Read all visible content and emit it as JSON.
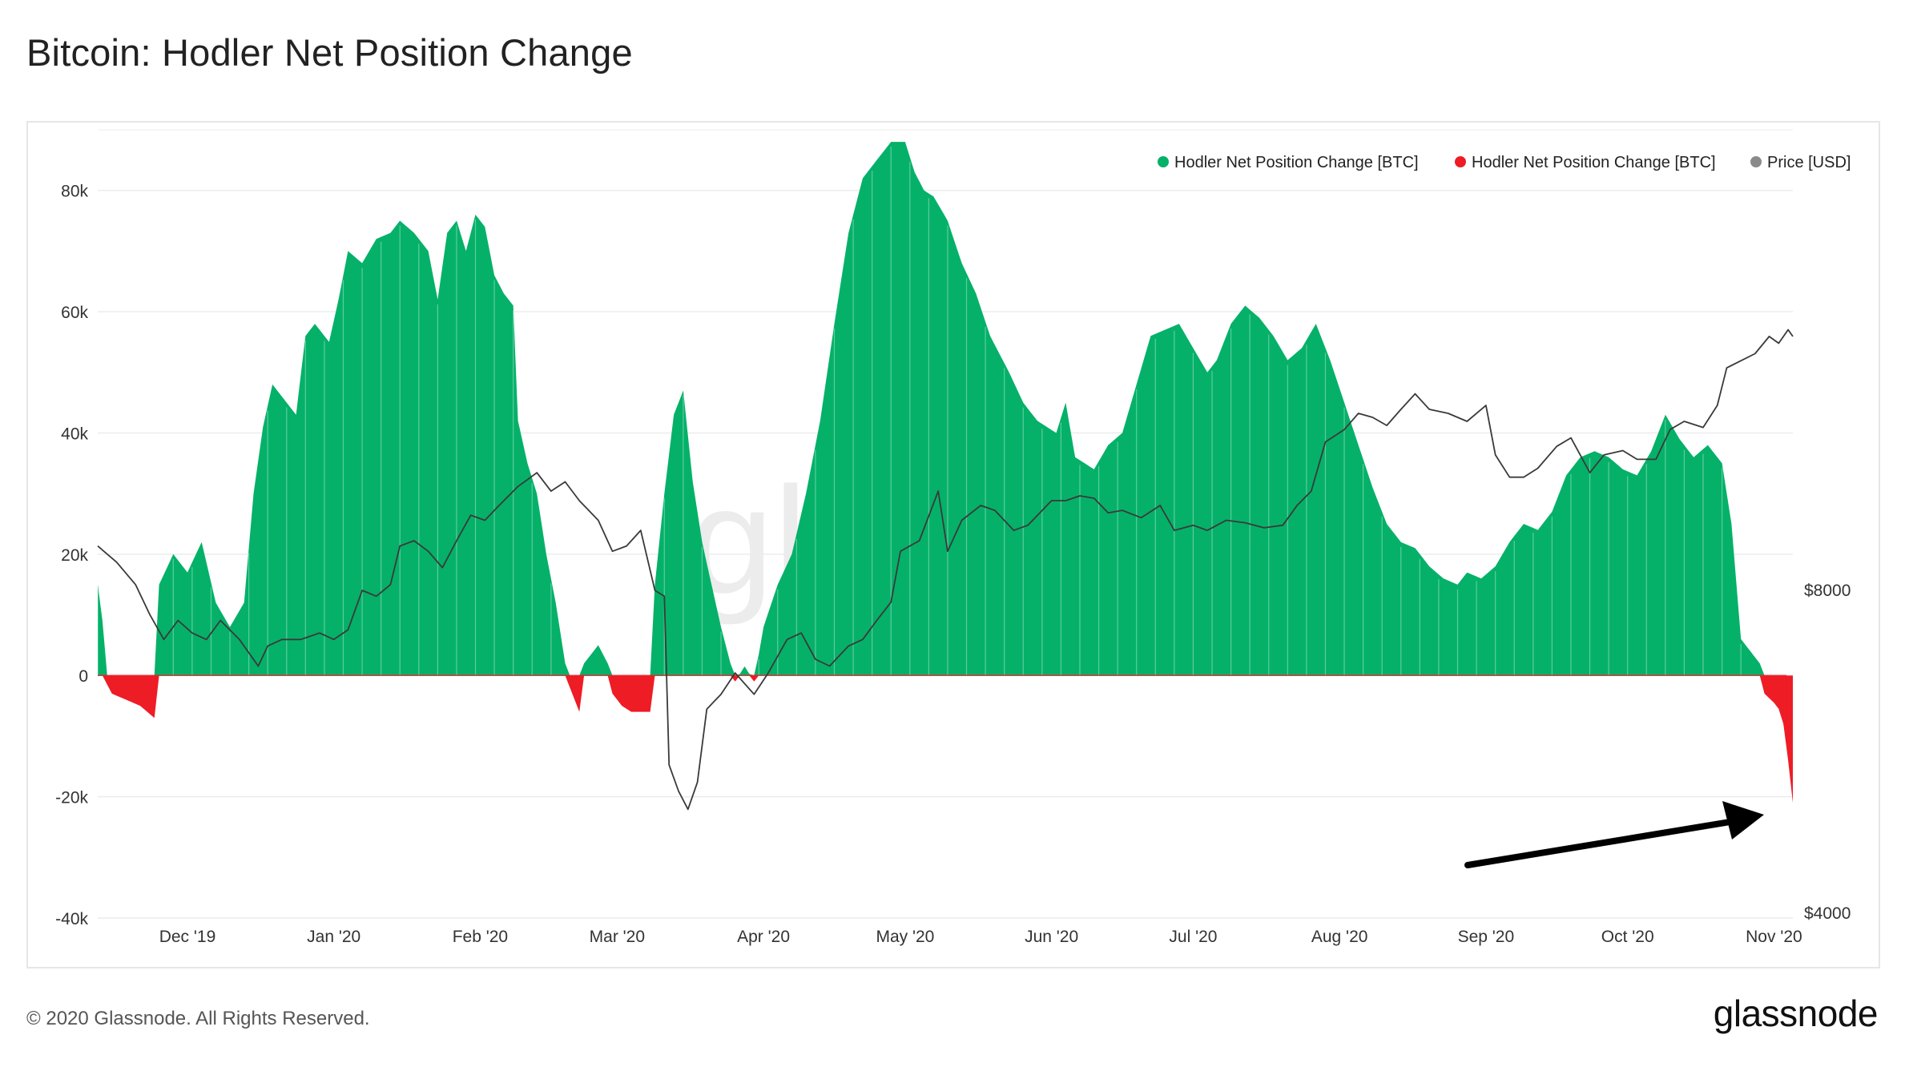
{
  "page": {
    "title": "Bitcoin: Hodler Net Position Change",
    "copyright": "© 2020 Glassnode. All Rights Reserved.",
    "logo": "glassnode",
    "watermark": "glassnode"
  },
  "colors": {
    "positive": "#05b169",
    "negative": "#ee1c25",
    "price": "#3a3a3a",
    "legend_price": "#8a8a8a",
    "arrow": "#000000"
  },
  "chart_data": {
    "type": "area",
    "title": "Bitcoin: Hodler Net Position Change",
    "x_ticks": [
      "Dec '19",
      "Jan '20",
      "Feb '20",
      "Mar '20",
      "Apr '20",
      "May '20",
      "Jun '20",
      "Jul '20",
      "Aug '20",
      "Sep '20",
      "Oct '20",
      "Nov '20"
    ],
    "y_left_ticks": [
      "80k",
      "60k",
      "40k",
      "20k",
      "0",
      "-20k",
      "-40k"
    ],
    "y_left_range": [
      -40000,
      90000
    ],
    "y_right_ticks": [
      "$8000",
      "$4000"
    ],
    "y_right_scale": "log",
    "x_range": [
      "2019-11-12",
      "2020-11-05"
    ],
    "legend": [
      {
        "label": "Hodler Net Position Change [BTC]",
        "color": "#05b169"
      },
      {
        "label": "Hodler Net Position Change [BTC]",
        "color": "#ee1c25"
      },
      {
        "label": "Price [USD]",
        "color": "#8a8a8a"
      }
    ],
    "legend_position": "top-right",
    "grid": true,
    "annotation": "arrow pointing to the late-October 2020 drop to about -21k BTC",
    "series": [
      {
        "name": "Hodler Net Position Change [BTC]",
        "unit": "BTC",
        "points": [
          [
            "2019-11-12",
            15000
          ],
          [
            "2019-11-13",
            9000
          ],
          [
            "2019-11-14",
            -1500
          ],
          [
            "2019-11-15",
            -3000
          ],
          [
            "2019-11-18",
            -4000
          ],
          [
            "2019-11-21",
            -5000
          ],
          [
            "2019-11-24",
            -7000
          ],
          [
            "2019-11-25",
            15000
          ],
          [
            "2019-11-28",
            20000
          ],
          [
            "2019-12-01",
            17000
          ],
          [
            "2019-12-04",
            22000
          ],
          [
            "2019-12-07",
            12000
          ],
          [
            "2019-12-10",
            8000
          ],
          [
            "2019-12-13",
            12000
          ],
          [
            "2019-12-15",
            30000
          ],
          [
            "2019-12-17",
            41000
          ],
          [
            "2019-12-19",
            48000
          ],
          [
            "2019-12-21",
            46000
          ],
          [
            "2019-12-24",
            43000
          ],
          [
            "2019-12-26",
            56000
          ],
          [
            "2019-12-28",
            58000
          ],
          [
            "2019-12-31",
            55000
          ],
          [
            "2020-01-02",
            62000
          ],
          [
            "2020-01-04",
            70000
          ],
          [
            "2020-01-07",
            68000
          ],
          [
            "2020-01-10",
            72000
          ],
          [
            "2020-01-13",
            73000
          ],
          [
            "2020-01-15",
            75000
          ],
          [
            "2020-01-18",
            73000
          ],
          [
            "2020-01-21",
            70000
          ],
          [
            "2020-01-23",
            62000
          ],
          [
            "2020-01-25",
            73000
          ],
          [
            "2020-01-27",
            75000
          ],
          [
            "2020-01-29",
            70000
          ],
          [
            "2020-01-31",
            76000
          ],
          [
            "2020-02-02",
            74000
          ],
          [
            "2020-02-04",
            66000
          ],
          [
            "2020-02-06",
            63000
          ],
          [
            "2020-02-08",
            61000
          ],
          [
            "2020-02-09",
            42000
          ],
          [
            "2020-02-11",
            35000
          ],
          [
            "2020-02-13",
            30000
          ],
          [
            "2020-02-15",
            20000
          ],
          [
            "2020-02-17",
            12000
          ],
          [
            "2020-02-19",
            2000
          ],
          [
            "2020-02-20",
            -2000
          ],
          [
            "2020-02-22",
            -6000
          ],
          [
            "2020-02-23",
            2000
          ],
          [
            "2020-02-26",
            5000
          ],
          [
            "2020-02-28",
            2000
          ],
          [
            "2020-02-29",
            -3000
          ],
          [
            "2020-03-02",
            -5000
          ],
          [
            "2020-03-04",
            -6000
          ],
          [
            "2020-03-06",
            -6000
          ],
          [
            "2020-03-08",
            -6000
          ],
          [
            "2020-03-09",
            15000
          ],
          [
            "2020-03-11",
            30000
          ],
          [
            "2020-03-13",
            43000
          ],
          [
            "2020-03-15",
            47000
          ],
          [
            "2020-03-17",
            32000
          ],
          [
            "2020-03-19",
            22000
          ],
          [
            "2020-03-21",
            15000
          ],
          [
            "2020-03-23",
            8000
          ],
          [
            "2020-03-25",
            2000
          ],
          [
            "2020-03-26",
            -1000
          ],
          [
            "2020-03-28",
            1500
          ],
          [
            "2020-03-30",
            -1000
          ],
          [
            "2020-04-01",
            8000
          ],
          [
            "2020-04-04",
            15000
          ],
          [
            "2020-04-07",
            20000
          ],
          [
            "2020-04-10",
            30000
          ],
          [
            "2020-04-13",
            42000
          ],
          [
            "2020-04-16",
            58000
          ],
          [
            "2020-04-19",
            73000
          ],
          [
            "2020-04-22",
            82000
          ],
          [
            "2020-04-25",
            85000
          ],
          [
            "2020-04-28",
            88000
          ],
          [
            "2020-05-01",
            88000
          ],
          [
            "2020-05-03",
            83000
          ],
          [
            "2020-05-05",
            80000
          ],
          [
            "2020-05-07",
            79000
          ],
          [
            "2020-05-10",
            75000
          ],
          [
            "2020-05-13",
            68000
          ],
          [
            "2020-05-16",
            63000
          ],
          [
            "2020-05-19",
            56000
          ],
          [
            "2020-05-23",
            50000
          ],
          [
            "2020-05-26",
            45000
          ],
          [
            "2020-05-29",
            42000
          ],
          [
            "2020-06-02",
            40000
          ],
          [
            "2020-06-04",
            45000
          ],
          [
            "2020-06-06",
            36000
          ],
          [
            "2020-06-10",
            34000
          ],
          [
            "2020-06-13",
            38000
          ],
          [
            "2020-06-16",
            40000
          ],
          [
            "2020-06-19",
            48000
          ],
          [
            "2020-06-22",
            56000
          ],
          [
            "2020-06-25",
            57000
          ],
          [
            "2020-06-28",
            58000
          ],
          [
            "2020-07-01",
            54000
          ],
          [
            "2020-07-04",
            50000
          ],
          [
            "2020-07-06",
            52000
          ],
          [
            "2020-07-09",
            58000
          ],
          [
            "2020-07-12",
            61000
          ],
          [
            "2020-07-15",
            59000
          ],
          [
            "2020-07-18",
            56000
          ],
          [
            "2020-07-21",
            52000
          ],
          [
            "2020-07-24",
            54000
          ],
          [
            "2020-07-27",
            58000
          ],
          [
            "2020-07-30",
            52000
          ],
          [
            "2020-08-02",
            45000
          ],
          [
            "2020-08-05",
            38000
          ],
          [
            "2020-08-08",
            31000
          ],
          [
            "2020-08-11",
            25000
          ],
          [
            "2020-08-14",
            22000
          ],
          [
            "2020-08-17",
            21000
          ],
          [
            "2020-08-20",
            18000
          ],
          [
            "2020-08-23",
            16000
          ],
          [
            "2020-08-26",
            15000
          ],
          [
            "2020-08-28",
            17000
          ],
          [
            "2020-08-31",
            16000
          ],
          [
            "2020-09-03",
            18000
          ],
          [
            "2020-09-06",
            22000
          ],
          [
            "2020-09-09",
            25000
          ],
          [
            "2020-09-12",
            24000
          ],
          [
            "2020-09-15",
            27000
          ],
          [
            "2020-09-18",
            33000
          ],
          [
            "2020-09-21",
            36000
          ],
          [
            "2020-09-24",
            37000
          ],
          [
            "2020-09-27",
            36000
          ],
          [
            "2020-09-30",
            34000
          ],
          [
            "2020-10-03",
            33000
          ],
          [
            "2020-10-06",
            37000
          ],
          [
            "2020-10-09",
            43000
          ],
          [
            "2020-10-12",
            39000
          ],
          [
            "2020-10-15",
            36000
          ],
          [
            "2020-10-18",
            38000
          ],
          [
            "2020-10-21",
            35000
          ],
          [
            "2020-10-23",
            25000
          ],
          [
            "2020-10-25",
            6000
          ],
          [
            "2020-10-27",
            4000
          ],
          [
            "2020-10-29",
            2000
          ],
          [
            "2020-10-30",
            -3000
          ],
          [
            "2020-11-01",
            -4500
          ],
          [
            "2020-11-02",
            -5500
          ],
          [
            "2020-11-03",
            -8000
          ],
          [
            "2020-11-04",
            -14000
          ],
          [
            "2020-11-05",
            -21000
          ]
        ]
      },
      {
        "name": "Price [USD]",
        "unit": "USD",
        "points": [
          [
            "2019-11-12",
            8800
          ],
          [
            "2019-11-16",
            8500
          ],
          [
            "2019-11-20",
            8100
          ],
          [
            "2019-11-23",
            7600
          ],
          [
            "2019-11-26",
            7200
          ],
          [
            "2019-11-29",
            7500
          ],
          [
            "2019-12-02",
            7300
          ],
          [
            "2019-12-05",
            7200
          ],
          [
            "2019-12-08",
            7500
          ],
          [
            "2019-12-12",
            7200
          ],
          [
            "2019-12-16",
            6800
          ],
          [
            "2019-12-18",
            7100
          ],
          [
            "2019-12-21",
            7200
          ],
          [
            "2019-12-25",
            7200
          ],
          [
            "2019-12-29",
            7300
          ],
          [
            "2020-01-01",
            7200
          ],
          [
            "2020-01-04",
            7350
          ],
          [
            "2020-01-07",
            8000
          ],
          [
            "2020-01-10",
            7900
          ],
          [
            "2020-01-13",
            8100
          ],
          [
            "2020-01-15",
            8800
          ],
          [
            "2020-01-18",
            8900
          ],
          [
            "2020-01-21",
            8700
          ],
          [
            "2020-01-24",
            8400
          ],
          [
            "2020-01-27",
            8900
          ],
          [
            "2020-01-30",
            9400
          ],
          [
            "2020-02-02",
            9300
          ],
          [
            "2020-02-05",
            9600
          ],
          [
            "2020-02-09",
            10000
          ],
          [
            "2020-02-13",
            10300
          ],
          [
            "2020-02-16",
            9900
          ],
          [
            "2020-02-19",
            10100
          ],
          [
            "2020-02-22",
            9700
          ],
          [
            "2020-02-26",
            9300
          ],
          [
            "2020-02-29",
            8700
          ],
          [
            "2020-03-03",
            8800
          ],
          [
            "2020-03-06",
            9100
          ],
          [
            "2020-03-09",
            8000
          ],
          [
            "2020-03-11",
            7900
          ],
          [
            "2020-03-12",
            5500
          ],
          [
            "2020-03-14",
            5200
          ],
          [
            "2020-03-16",
            5000
          ],
          [
            "2020-03-18",
            5300
          ],
          [
            "2020-03-20",
            6200
          ],
          [
            "2020-03-23",
            6400
          ],
          [
            "2020-03-26",
            6700
          ],
          [
            "2020-03-30",
            6400
          ],
          [
            "2020-04-02",
            6700
          ],
          [
            "2020-04-06",
            7200
          ],
          [
            "2020-04-09",
            7300
          ],
          [
            "2020-04-12",
            6900
          ],
          [
            "2020-04-15",
            6800
          ],
          [
            "2020-04-19",
            7100
          ],
          [
            "2020-04-22",
            7200
          ],
          [
            "2020-04-25",
            7500
          ],
          [
            "2020-04-28",
            7800
          ],
          [
            "2020-04-30",
            8700
          ],
          [
            "2020-05-04",
            8900
          ],
          [
            "2020-05-08",
            9900
          ],
          [
            "2020-05-10",
            8700
          ],
          [
            "2020-05-13",
            9300
          ],
          [
            "2020-05-17",
            9600
          ],
          [
            "2020-05-20",
            9500
          ],
          [
            "2020-05-24",
            9100
          ],
          [
            "2020-05-27",
            9200
          ],
          [
            "2020-06-01",
            9700
          ],
          [
            "2020-06-04",
            9700
          ],
          [
            "2020-06-07",
            9800
          ],
          [
            "2020-06-10",
            9750
          ],
          [
            "2020-06-13",
            9450
          ],
          [
            "2020-06-16",
            9500
          ],
          [
            "2020-06-20",
            9350
          ],
          [
            "2020-06-24",
            9600
          ],
          [
            "2020-06-27",
            9100
          ],
          [
            "2020-07-01",
            9200
          ],
          [
            "2020-07-04",
            9100
          ],
          [
            "2020-07-08",
            9300
          ],
          [
            "2020-07-12",
            9250
          ],
          [
            "2020-07-16",
            9150
          ],
          [
            "2020-07-20",
            9200
          ],
          [
            "2020-07-23",
            9600
          ],
          [
            "2020-07-26",
            9900
          ],
          [
            "2020-07-29",
            11000
          ],
          [
            "2020-08-02",
            11300
          ],
          [
            "2020-08-05",
            11700
          ],
          [
            "2020-08-08",
            11600
          ],
          [
            "2020-08-11",
            11400
          ],
          [
            "2020-08-14",
            11800
          ],
          [
            "2020-08-17",
            12200
          ],
          [
            "2020-08-20",
            11800
          ],
          [
            "2020-08-24",
            11700
          ],
          [
            "2020-08-28",
            11500
          ],
          [
            "2020-09-01",
            11900
          ],
          [
            "2020-09-03",
            10700
          ],
          [
            "2020-09-06",
            10200
          ],
          [
            "2020-09-09",
            10200
          ],
          [
            "2020-09-12",
            10400
          ],
          [
            "2020-09-16",
            10900
          ],
          [
            "2020-09-19",
            11100
          ],
          [
            "2020-09-23",
            10300
          ],
          [
            "2020-09-26",
            10700
          ],
          [
            "2020-09-30",
            10800
          ],
          [
            "2020-10-03",
            10600
          ],
          [
            "2020-10-07",
            10600
          ],
          [
            "2020-10-10",
            11300
          ],
          [
            "2020-10-13",
            11500
          ],
          [
            "2020-10-17",
            11350
          ],
          [
            "2020-10-20",
            11900
          ],
          [
            "2020-10-22",
            12900
          ],
          [
            "2020-10-25",
            13100
          ],
          [
            "2020-10-28",
            13300
          ],
          [
            "2020-10-31",
            13800
          ],
          [
            "2020-11-02",
            13600
          ],
          [
            "2020-11-04",
            14000
          ],
          [
            "2020-11-05",
            13800
          ]
        ]
      }
    ]
  }
}
